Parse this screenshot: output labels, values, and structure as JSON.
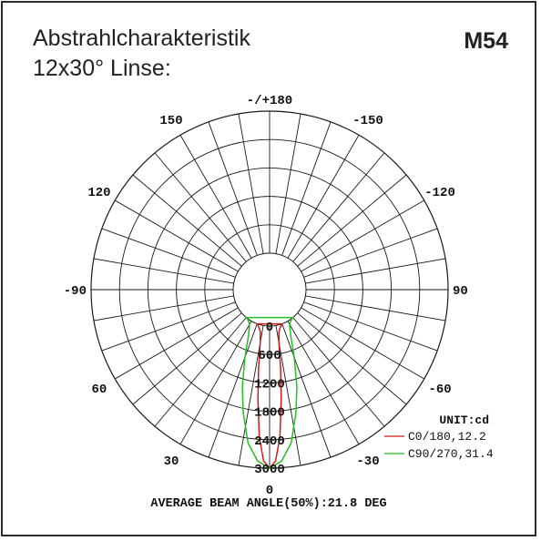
{
  "header": {
    "title_line1": "Abstrahlcharakteristik",
    "title_line2": "12x30° Linse:",
    "model": "M54"
  },
  "colors": {
    "grid": "#1a1a1a",
    "c0_180": "#d11a1a",
    "c90_270": "#22c022",
    "text": "#111111"
  },
  "chart_data": {
    "type": "polar",
    "unit_label": "UNIT:cd",
    "angle_labels": [
      "-/+180",
      "150",
      "120",
      "90",
      "60",
      "30",
      "0",
      "-30",
      "-60",
      "-90",
      "-120",
      "-150"
    ],
    "angle_values": [
      180,
      150,
      120,
      90,
      60,
      30,
      0,
      -30,
      -60,
      -90,
      -120,
      -150
    ],
    "radial_labels": [
      "0",
      "600",
      "1200",
      "1800",
      "2400",
      "3000"
    ],
    "radial_values": [
      0,
      600,
      1200,
      1800,
      2400,
      3000
    ],
    "rlim": [
      0,
      3000
    ],
    "grid": true,
    "series": [
      {
        "name": "C0/180,12.2",
        "color": "#d11a1a",
        "angles": [
          -20,
          -15,
          -12,
          -10,
          -8,
          -6.1,
          -4,
          -2,
          0,
          2,
          4,
          6.1,
          8,
          10,
          12,
          15,
          20
        ],
        "values": [
          0,
          75,
          160,
          370,
          900,
          1550,
          2350,
          2850,
          3000,
          2850,
          2350,
          1550,
          900,
          370,
          160,
          75,
          0
        ]
      },
      {
        "name": "C90/270,31.4",
        "color": "#22c022",
        "angles": [
          -40,
          -35,
          -30,
          -25,
          -20,
          -15.7,
          -12,
          -8,
          -4,
          0,
          4,
          8,
          12,
          15.7,
          20,
          25,
          30,
          35,
          40
        ],
        "values": [
          0,
          20,
          75,
          280,
          750,
          1360,
          1900,
          2500,
          2860,
          3000,
          2860,
          2500,
          1900,
          1360,
          750,
          280,
          75,
          20,
          0
        ]
      }
    ],
    "footer": "AVERAGE BEAM ANGLE(50%):21.8 DEG"
  }
}
